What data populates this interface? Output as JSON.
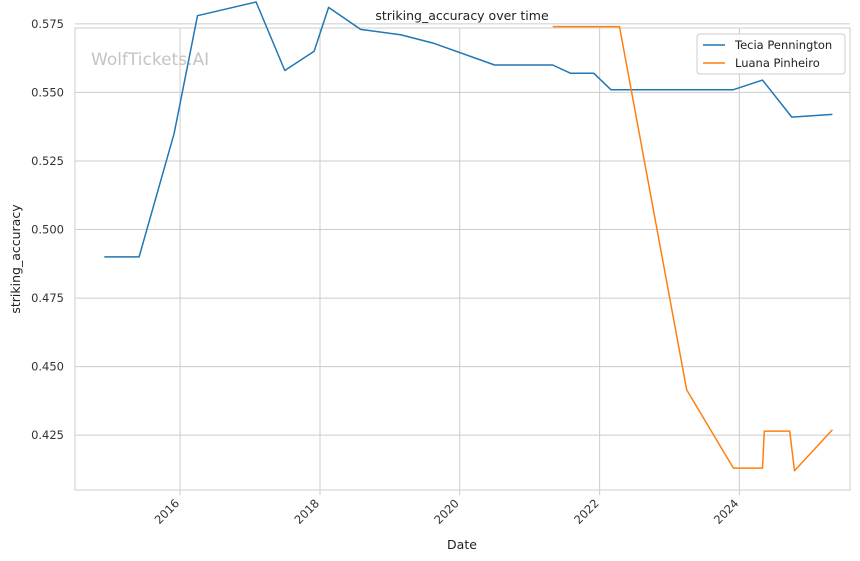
{
  "chart_data": {
    "type": "line",
    "title": "striking_accuracy over time",
    "xlabel": "Date",
    "ylabel": "striking_accuracy",
    "watermark": "WolfTickets.AI",
    "x_axis": {
      "type": "date",
      "range": [
        "2014-07-01",
        "2025-08-01"
      ],
      "ticks": [
        "2016",
        "2018",
        "2020",
        "2022",
        "2024"
      ]
    },
    "y_axis": {
      "range": [
        0.405,
        0.5735
      ],
      "ticks": [
        "0.425",
        "0.450",
        "0.475",
        "0.500",
        "0.525",
        "0.550",
        "0.575"
      ]
    },
    "grid": true,
    "legend": "top-right",
    "series": [
      {
        "name": "Tecia Pennington",
        "color": "#1f77b4",
        "points": [
          {
            "x": "2014-12-01",
            "y": 0.49
          },
          {
            "x": "2015-06-01",
            "y": 0.49
          },
          {
            "x": "2015-12-01",
            "y": 0.535
          },
          {
            "x": "2016-04-01",
            "y": 0.578
          },
          {
            "x": "2017-02-01",
            "y": 0.583
          },
          {
            "x": "2017-07-01",
            "y": 0.558
          },
          {
            "x": "2017-12-01",
            "y": 0.565
          },
          {
            "x": "2018-02-15",
            "y": 0.581
          },
          {
            "x": "2018-08-01",
            "y": 0.573
          },
          {
            "x": "2019-03-01",
            "y": 0.571
          },
          {
            "x": "2019-08-15",
            "y": 0.568
          },
          {
            "x": "2020-07-01",
            "y": 0.56
          },
          {
            "x": "2021-05-01",
            "y": 0.56
          },
          {
            "x": "2021-08-01",
            "y": 0.557
          },
          {
            "x": "2021-12-01",
            "y": 0.557
          },
          {
            "x": "2022-03-01",
            "y": 0.551
          },
          {
            "x": "2023-12-01",
            "y": 0.551
          },
          {
            "x": "2024-05-01",
            "y": 0.5545
          },
          {
            "x": "2024-10-01",
            "y": 0.541
          },
          {
            "x": "2025-05-01",
            "y": 0.542
          }
        ]
      },
      {
        "name": "Luana Pinheiro",
        "color": "#ff7f0e",
        "points": [
          {
            "x": "2021-05-01",
            "y": 0.574
          },
          {
            "x": "2022-04-15",
            "y": 0.574
          },
          {
            "x": "2023-04-01",
            "y": 0.4415
          },
          {
            "x": "2023-12-01",
            "y": 0.413
          },
          {
            "x": "2024-05-01",
            "y": 0.413
          },
          {
            "x": "2024-05-10",
            "y": 0.4265
          },
          {
            "x": "2024-09-20",
            "y": 0.4265
          },
          {
            "x": "2024-10-15",
            "y": 0.412
          },
          {
            "x": "2025-05-01",
            "y": 0.427
          }
        ]
      }
    ]
  }
}
